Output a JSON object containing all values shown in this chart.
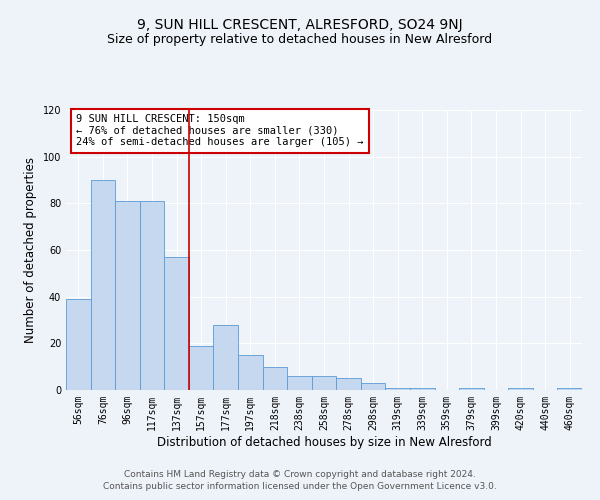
{
  "title": "9, SUN HILL CRESCENT, ALRESFORD, SO24 9NJ",
  "subtitle": "Size of property relative to detached houses in New Alresford",
  "xlabel": "Distribution of detached houses by size in New Alresford",
  "ylabel": "Number of detached properties",
  "categories": [
    "56sqm",
    "76sqm",
    "96sqm",
    "117sqm",
    "137sqm",
    "157sqm",
    "177sqm",
    "197sqm",
    "218sqm",
    "238sqm",
    "258sqm",
    "278sqm",
    "298sqm",
    "319sqm",
    "339sqm",
    "359sqm",
    "379sqm",
    "399sqm",
    "420sqm",
    "440sqm",
    "460sqm"
  ],
  "values": [
    39,
    90,
    81,
    81,
    57,
    19,
    28,
    15,
    10,
    6,
    6,
    5,
    3,
    1,
    1,
    0,
    1,
    0,
    1,
    0,
    1
  ],
  "bar_color": "#c5d8ef",
  "bar_edge_color": "#5b9bd5",
  "red_line_x": 4.5,
  "annotation_text": "9 SUN HILL CRESCENT: 150sqm\n← 76% of detached houses are smaller (330)\n24% of semi-detached houses are larger (105) →",
  "annotation_box_color": "#ffffff",
  "annotation_box_edge": "#cc0000",
  "ylim": [
    0,
    120
  ],
  "yticks": [
    0,
    20,
    40,
    60,
    80,
    100,
    120
  ],
  "footer1": "Contains HM Land Registry data © Crown copyright and database right 2024.",
  "footer2": "Contains public sector information licensed under the Open Government Licence v3.0.",
  "bg_color": "#eef2f9",
  "grid_color": "#ffffff",
  "title_fontsize": 10,
  "subtitle_fontsize": 9,
  "axis_label_fontsize": 8.5,
  "tick_fontsize": 7,
  "annotation_fontsize": 7.5,
  "footer_fontsize": 6.5
}
